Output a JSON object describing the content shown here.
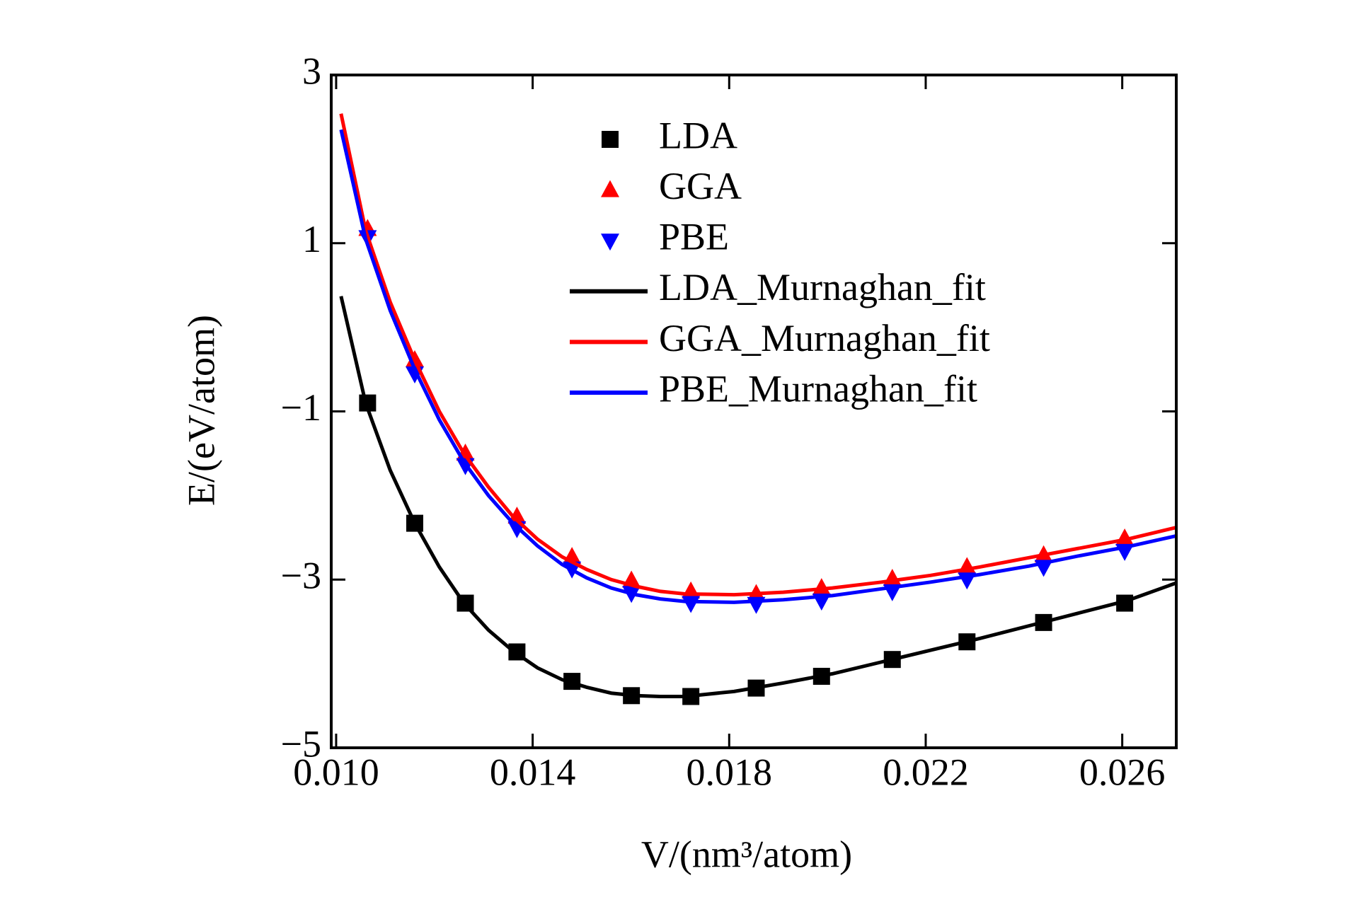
{
  "chart_data": {
    "type": "scatter",
    "xlabel": "V/(nm³/atom)",
    "ylabel": "E/(eV/atom)",
    "xlim": [
      0.0099,
      0.0271
    ],
    "ylim": [
      -5,
      3
    ],
    "xticks": [
      {
        "value": 0.01,
        "label": "0.010"
      },
      0.014,
      0.018,
      0.022,
      0.026
    ],
    "yticks": [
      {
        "value": -5,
        "label": "−5"
      },
      {
        "value": -3,
        "label": "−3"
      },
      {
        "value": -1,
        "label": "−1"
      },
      1,
      3
    ],
    "series": [
      {
        "name": "LDA",
        "color": "#000000",
        "marker": "square",
        "x": [
          0.01064,
          0.0116,
          0.01263,
          0.01368,
          0.0148,
          0.01601,
          0.01722,
          0.01855,
          0.01988,
          0.02132,
          0.02284,
          0.0244,
          0.02605
        ],
        "values": [
          -0.9,
          -2.33,
          -3.28,
          -3.86,
          -4.21,
          -4.38,
          -4.39,
          -4.29,
          -4.15,
          -3.95,
          -3.74,
          -3.51,
          -3.28
        ]
      },
      {
        "name": "GGA",
        "color": "#ff0000",
        "marker": "triangle-up",
        "x": [
          0.01064,
          0.0116,
          0.01263,
          0.01368,
          0.0148,
          0.01601,
          0.01722,
          0.01855,
          0.01988,
          0.02132,
          0.02284,
          0.0244,
          0.02605
        ],
        "values": [
          1.17,
          -0.39,
          -1.5,
          -2.25,
          -2.73,
          -3.01,
          -3.14,
          -3.17,
          -3.1,
          -2.99,
          -2.85,
          -2.71,
          -2.51
        ]
      },
      {
        "name": "PBE",
        "color": "#0000ff",
        "marker": "triangle-down",
        "x": [
          0.01064,
          0.0116,
          0.01263,
          0.01368,
          0.0148,
          0.01601,
          0.01722,
          0.01855,
          0.01988,
          0.02132,
          0.02284,
          0.0244,
          0.02605
        ],
        "values": [
          1.07,
          -0.55,
          -1.64,
          -2.39,
          -2.87,
          -3.16,
          -3.28,
          -3.29,
          -3.25,
          -3.14,
          -3,
          -2.85,
          -2.66
        ]
      },
      {
        "name": "LDA_Murnaghan_fit",
        "color": "#000000",
        "marker": "line",
        "x": [
          0.0101,
          0.0106,
          0.0111,
          0.0116,
          0.0121,
          0.0126,
          0.0131,
          0.0136,
          0.0141,
          0.0146,
          0.0151,
          0.0156,
          0.0161,
          0.0166,
          0.0171,
          0.0181,
          0.0191,
          0.0201,
          0.0211,
          0.0221,
          0.0231,
          0.0241,
          0.0251,
          0.0261,
          0.0271
        ],
        "values": [
          0.37,
          -0.9,
          -1.7,
          -2.33,
          -2.85,
          -3.28,
          -3.6,
          -3.85,
          -4.05,
          -4.19,
          -4.28,
          -4.35,
          -4.38,
          -4.39,
          -4.39,
          -4.33,
          -4.23,
          -4.12,
          -3.98,
          -3.84,
          -3.7,
          -3.55,
          -3.4,
          -3.25,
          -3.04
        ]
      },
      {
        "name": "GGA_Murnaghan_fit",
        "color": "#ff0000",
        "marker": "line",
        "x": [
          0.0101,
          0.0106,
          0.0111,
          0.0116,
          0.0121,
          0.0126,
          0.0131,
          0.0136,
          0.0141,
          0.0146,
          0.0151,
          0.0156,
          0.0161,
          0.0166,
          0.0171,
          0.0181,
          0.0191,
          0.0201,
          0.0211,
          0.0221,
          0.0231,
          0.0241,
          0.0251,
          0.0261,
          0.0271
        ],
        "values": [
          2.54,
          1.15,
          0.3,
          -0.39,
          -1,
          -1.5,
          -1.9,
          -2.25,
          -2.52,
          -2.73,
          -2.88,
          -3,
          -3.08,
          -3.14,
          -3.17,
          -3.18,
          -3.15,
          -3.1,
          -3.03,
          -2.95,
          -2.85,
          -2.74,
          -2.63,
          -2.52,
          -2.38
        ]
      },
      {
        "name": "PBE_Murnaghan_fit",
        "color": "#0000ff",
        "marker": "line",
        "x": [
          0.0101,
          0.0106,
          0.0111,
          0.0116,
          0.0121,
          0.0126,
          0.0131,
          0.0136,
          0.0141,
          0.0146,
          0.0151,
          0.0156,
          0.0161,
          0.0166,
          0.0171,
          0.0181,
          0.0191,
          0.0201,
          0.0211,
          0.0221,
          0.0231,
          0.0241,
          0.0251,
          0.0261,
          0.0271
        ],
        "values": [
          2.35,
          1.05,
          0.2,
          -0.5,
          -1.1,
          -1.6,
          -2,
          -2.33,
          -2.6,
          -2.82,
          -2.98,
          -3.1,
          -3.18,
          -3.23,
          -3.26,
          -3.27,
          -3.24,
          -3.19,
          -3.11,
          -3.03,
          -2.94,
          -2.84,
          -2.72,
          -2.61,
          -2.48
        ]
      }
    ]
  }
}
